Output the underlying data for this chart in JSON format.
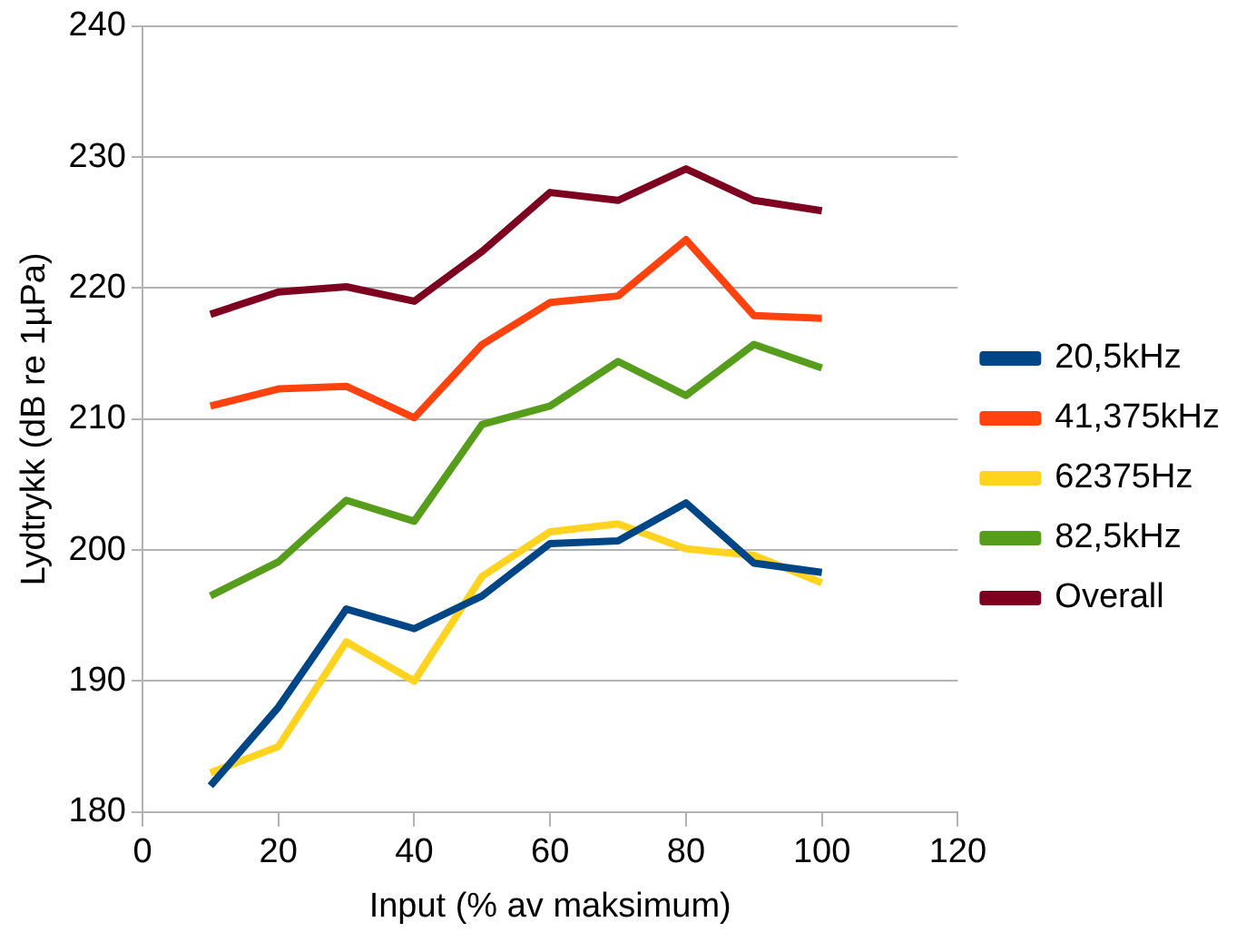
{
  "chart_data": {
    "type": "line",
    "xlabel": "Input (% av maksimum)",
    "ylabel": "Lydtrykk (dB re 1µPa)",
    "x": [
      10,
      20,
      30,
      40,
      50,
      60,
      70,
      80,
      90,
      100
    ],
    "series": [
      {
        "name": "20,5kHz",
        "color": "#004586",
        "values": [
          182,
          188,
          195.5,
          194,
          196.5,
          200.5,
          200.7,
          203.6,
          199,
          198.3
        ]
      },
      {
        "name": "41,375kHz",
        "color": "#ff420e",
        "values": [
          211,
          212.3,
          212.5,
          210.1,
          215.7,
          218.9,
          219.4,
          223.7,
          217.9,
          217.7
        ]
      },
      {
        "name": "62375Hz",
        "color": "#ffd320",
        "values": [
          183,
          185,
          193,
          190,
          198,
          201.4,
          202,
          200.1,
          199.6,
          197.5
        ]
      },
      {
        "name": "82,5kHz",
        "color": "#579d1c",
        "values": [
          196.5,
          199.1,
          203.8,
          202.2,
          209.6,
          211,
          214.4,
          211.8,
          215.7,
          213.9
        ]
      },
      {
        "name": "Overall",
        "color": "#7e0021",
        "values": [
          218,
          219.7,
          220.1,
          219,
          222.8,
          227.3,
          226.7,
          229.1,
          226.7,
          225.9
        ]
      }
    ],
    "xlim": [
      0,
      120
    ],
    "xticks": [
      0,
      20,
      40,
      60,
      80,
      100,
      120
    ],
    "ylim": [
      180,
      240
    ],
    "yticks": [
      180,
      190,
      200,
      210,
      220,
      230,
      240
    ],
    "grid": "y",
    "legend": "right",
    "marker": "none",
    "line_style": "solid"
  }
}
